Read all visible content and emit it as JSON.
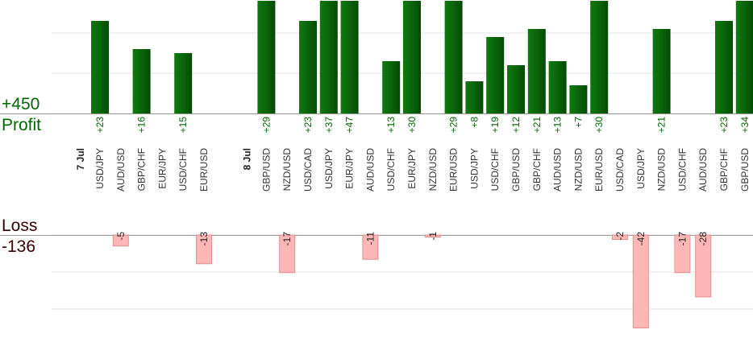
{
  "profit_total": "+450",
  "profit_label": "Profit",
  "loss_label": "Loss",
  "loss_total": "-136",
  "colors": {
    "profit_bar": "#0a6a0a",
    "profit_text": "#006600",
    "loss_fill": "#ffb6b6",
    "loss_stroke": "#e58f8f",
    "loss_text": "#3a0000",
    "grid": "#e6e6e6",
    "axis": "#999999"
  },
  "chart_data": {
    "type": "bar",
    "dates": [
      {
        "label": "7 Jul",
        "slot": 0
      },
      {
        "label": "8 Jul",
        "slot": 8
      }
    ],
    "slots": [
      {
        "pair": "USD/JPY",
        "profit": 23
      },
      {
        "pair": "AUD/USD",
        "loss": -5
      },
      {
        "pair": "GBP/CHF",
        "profit": 16
      },
      {
        "pair": "EUR/JPY"
      },
      {
        "pair": "USD/CHF",
        "profit": 15
      },
      {
        "pair": "EUR/USD",
        "loss": -13
      },
      {
        "pair": ""
      },
      {
        "pair": ""
      },
      {
        "pair": "GBP/USD",
        "profit": 29
      },
      {
        "pair": "NZD/USD",
        "loss": -17
      },
      {
        "pair": "USD/CAD",
        "profit": 23
      },
      {
        "pair": "USD/JPY",
        "profit": 37
      },
      {
        "pair": "EUR/JPY",
        "profit": 47
      },
      {
        "pair": "AUD/USD",
        "loss": -11
      },
      {
        "pair": "USD/CHF",
        "profit": 13
      },
      {
        "pair": "EUR/JPY",
        "profit": 30
      },
      {
        "pair": "NZD/USD",
        "loss": -1
      },
      {
        "pair": "EUR/USD",
        "profit": 29
      },
      {
        "pair": "USD/JPY",
        "profit": 8
      },
      {
        "pair": "USD/CHF",
        "profit": 19
      },
      {
        "pair": "GBP/USD",
        "profit": 12
      },
      {
        "pair": "GBP/CHF",
        "profit": 21
      },
      {
        "pair": "AUD/USD",
        "profit": 13
      },
      {
        "pair": "NZD/USD",
        "profit": 7
      },
      {
        "pair": "EUR/USD",
        "profit": 30
      },
      {
        "pair": "USD/CAD",
        "loss": -2
      },
      {
        "pair": "USD/JPY",
        "loss": -42
      },
      {
        "pair": "NZD/USD",
        "profit": 21
      },
      {
        "pair": "USD/CHF",
        "loss": -17
      },
      {
        "pair": "AUD/USD",
        "loss": -28
      },
      {
        "pair": "GBP/CHF",
        "profit": 23
      },
      {
        "pair": "GBP/USD",
        "profit": 34
      }
    ],
    "profit_scale_max": 28,
    "loss_scale_max": 42,
    "grid": true
  }
}
